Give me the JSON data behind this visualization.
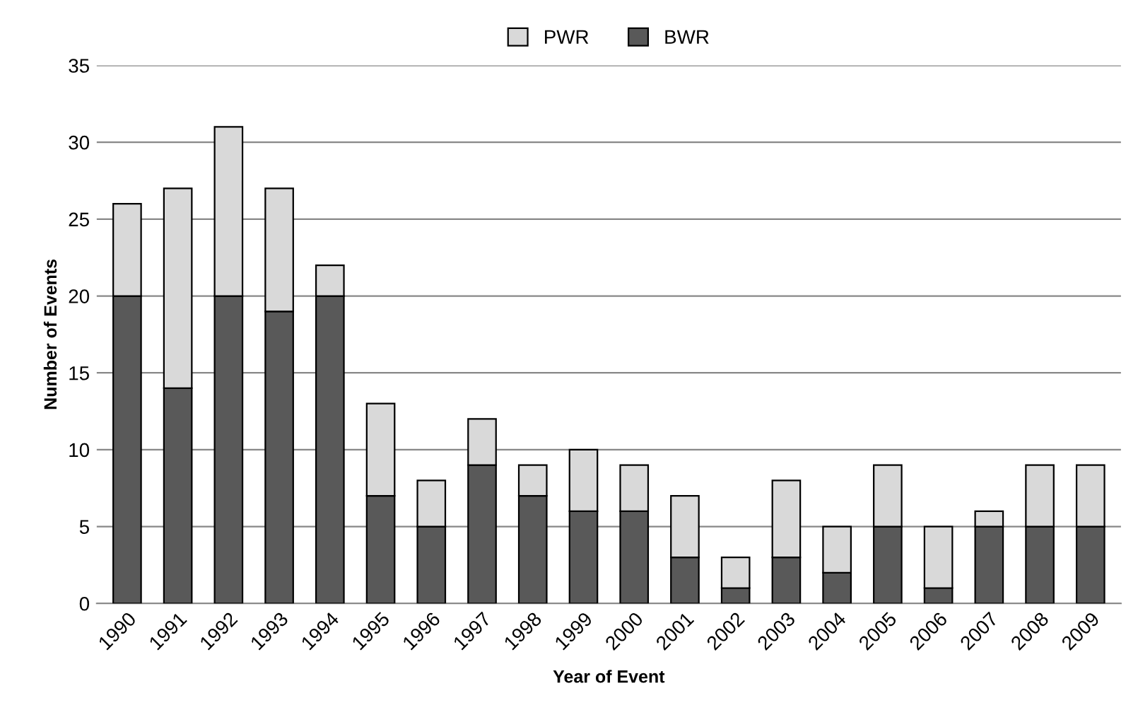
{
  "chart_data": {
    "type": "bar",
    "stacked": true,
    "xlabel": "Year of Event",
    "ylabel": "Number of Events",
    "categories": [
      "1990",
      "1991",
      "1992",
      "1993",
      "1994",
      "1995",
      "1996",
      "1997",
      "1998",
      "1999",
      "2000",
      "2001",
      "2002",
      "2003",
      "2004",
      "2005",
      "2006",
      "2007",
      "2008",
      "2009"
    ],
    "series": [
      {
        "name": "BWR",
        "color": "#595959",
        "values": [
          20,
          14,
          20,
          19,
          20,
          7,
          5,
          9,
          7,
          6,
          6,
          3,
          1,
          3,
          2,
          5,
          1,
          5,
          5,
          5
        ]
      },
      {
        "name": "PWR",
        "color": "#d9d9d9",
        "values": [
          6,
          13,
          11,
          8,
          2,
          6,
          3,
          3,
          2,
          4,
          3,
          4,
          2,
          5,
          3,
          4,
          4,
          1,
          4,
          4
        ]
      }
    ],
    "ylim": [
      0,
      35
    ],
    "yticks": [
      0,
      5,
      10,
      15,
      20,
      25,
      30,
      35
    ],
    "grid": "y",
    "legend": "top"
  }
}
